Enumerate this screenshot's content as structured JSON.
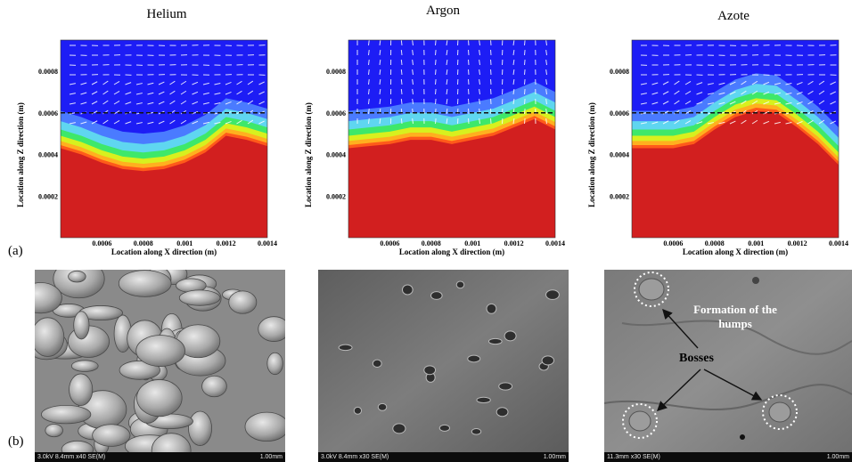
{
  "columns": [
    {
      "title": "Helium",
      "key": "helium"
    },
    {
      "title": "Argon",
      "key": "argon"
    },
    {
      "title": "Azote",
      "key": "azote"
    }
  ],
  "panel_labels": {
    "a": "(a)",
    "b": "(b)"
  },
  "chart_data": [
    {
      "type": "heatmap",
      "name": "Helium",
      "xlabel": "Location along X direction (m)",
      "ylabel": "Location along Z direction (m)",
      "xticks": [
        "0.0006",
        "0.0008",
        "0.001",
        "0.0012",
        "0.0014"
      ],
      "yticks": [
        "0.0008",
        "0.0006",
        "0.0004",
        "0.0002"
      ],
      "xlim": [
        0.0004,
        0.0014
      ],
      "ylim": [
        0.0,
        0.00095
      ],
      "dashed_line_z": 0.0006,
      "interface_profile": {
        "x": [
          0.0004,
          0.0005,
          0.0006,
          0.0007,
          0.0008,
          0.0009,
          0.001,
          0.0011,
          0.0012,
          0.0013,
          0.0014
        ],
        "z": [
          0.00043,
          0.0004,
          0.00036,
          0.00033,
          0.00032,
          0.00033,
          0.00036,
          0.00041,
          0.00049,
          0.00047,
          0.00044
        ]
      },
      "colors": [
        "#1d1df5",
        "#4a7bff",
        "#5fd6f0",
        "#3ee86a",
        "#d8f01e",
        "#ffb01f",
        "#ff5a1a",
        "#d21f1f"
      ]
    },
    {
      "type": "heatmap",
      "name": "Argon",
      "xlabel": "Location along X direction (m)",
      "ylabel": "Location along Z direction (m)",
      "xticks": [
        "0.0006",
        "0.0008",
        "0.001",
        "0.0012",
        "0.0014"
      ],
      "yticks": [
        "0.0008",
        "0.0006",
        "0.0004",
        "0.0002"
      ],
      "xlim": [
        0.0004,
        0.0014
      ],
      "ylim": [
        0.0,
        0.00095
      ],
      "dashed_line_z": 0.0006,
      "interface_profile": {
        "x": [
          0.0004,
          0.0005,
          0.0006,
          0.0007,
          0.0008,
          0.0009,
          0.001,
          0.0011,
          0.0012,
          0.0013,
          0.0014
        ],
        "z": [
          0.00043,
          0.00044,
          0.00045,
          0.00047,
          0.00047,
          0.00045,
          0.00047,
          0.00049,
          0.00053,
          0.00057,
          0.00052
        ]
      },
      "colors": [
        "#1d1df5",
        "#4a7bff",
        "#5fd6f0",
        "#3ee86a",
        "#d8f01e",
        "#ffb01f",
        "#ff5a1a",
        "#d21f1f"
      ]
    },
    {
      "type": "heatmap",
      "name": "Azote",
      "xlabel": "Location along X direction (m)",
      "ylabel": "Location along Z direction (m)",
      "xticks": [
        "0.0006",
        "0.0008",
        "0.001",
        "0.0012",
        "0.0014"
      ],
      "yticks": [
        "0.0008",
        "0.0006",
        "0.0004",
        "0.0002"
      ],
      "xlim": [
        0.0004,
        0.0014
      ],
      "ylim": [
        0.0,
        0.00095
      ],
      "dashed_line_z": 0.0006,
      "interface_profile": {
        "x": [
          0.0004,
          0.0005,
          0.0006,
          0.0007,
          0.0008,
          0.0009,
          0.001,
          0.0011,
          0.0012,
          0.0013,
          0.0014
        ],
        "z": [
          0.00043,
          0.00043,
          0.00043,
          0.00045,
          0.00052,
          0.00058,
          0.00061,
          0.0006,
          0.00053,
          0.00045,
          0.00035
        ]
      },
      "colors": [
        "#1d1df5",
        "#4a7bff",
        "#5fd6f0",
        "#3ee86a",
        "#d8f01e",
        "#ffb01f",
        "#ff5a1a",
        "#d21f1f"
      ]
    }
  ],
  "sem_images": [
    {
      "caption": "3.0kV 8.4mm x40 SE(M)",
      "scale": "1.00mm"
    },
    {
      "caption": "3.0kV 8.4mm x30 SE(M)",
      "scale": "1.00mm"
    },
    {
      "caption": "11.3mm x30 SE(M)",
      "scale": "1.00mm"
    }
  ],
  "annotations": {
    "formation": "Formation of the humps",
    "bosses": "Bosses"
  }
}
